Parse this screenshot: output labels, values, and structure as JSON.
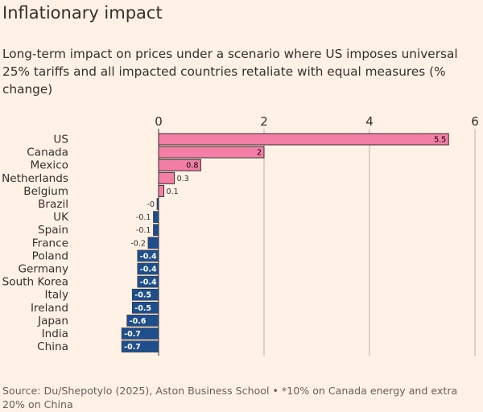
{
  "chart_data": {
    "type": "bar",
    "orientation": "horizontal",
    "title": "Inflationary impact",
    "subtitle": "Long-term impact on prices under a scenario where US imposes universal 25% tariffs and all impacted countries retaliate with equal measures (% change)",
    "categories": [
      "US",
      "Canada",
      "Mexico",
      "Netherlands",
      "Belgium",
      "Brazil",
      "UK",
      "Spain",
      "France",
      "Poland",
      "Germany",
      "South Korea",
      "Italy",
      "Ireland",
      "Japan",
      "India",
      "China"
    ],
    "values": [
      5.5,
      2,
      0.8,
      0.3,
      0.1,
      -0.02,
      -0.1,
      -0.1,
      -0.2,
      -0.4,
      -0.4,
      -0.4,
      -0.5,
      -0.5,
      -0.6,
      -0.7,
      -0.7
    ],
    "value_labels": [
      "5.5",
      "2",
      "0.8",
      "0.3",
      "0.1",
      "-0",
      "-0.1",
      "-0.1",
      "-0.2",
      "-0.4",
      "-0.4",
      "-0.4",
      "-0.5",
      "-0.5",
      "-0.6",
      "-0.7",
      "-0.7"
    ],
    "xlim": [
      0,
      6
    ],
    "x_ticks": [
      "0",
      "2",
      "4",
      "6"
    ],
    "axis_position": "top",
    "grid": true,
    "colors": {
      "positive": "#f47fa6",
      "negative": "#1e4f8c",
      "bar_outline": "#33302e",
      "grid": "#b9b1a9",
      "background": "#fff1e5"
    },
    "source": "Source: Du/Shepotylo (2025), Aston Business School • *10% on Canada energy and extra 20% on China"
  }
}
